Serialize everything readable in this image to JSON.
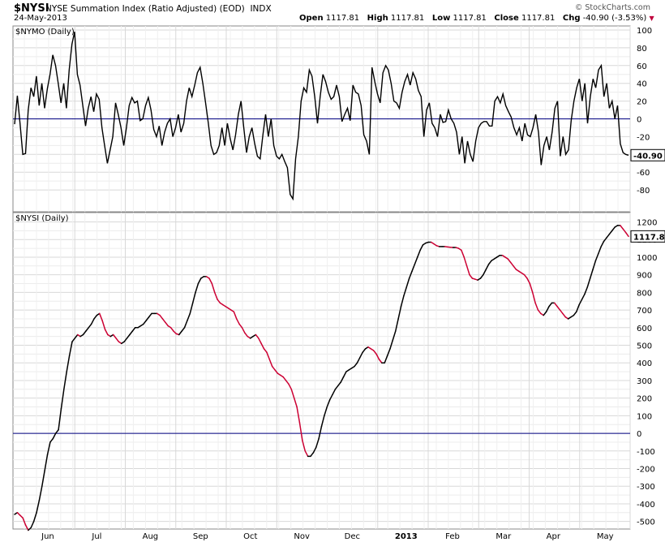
{
  "header": {
    "symbol": "$NYSI",
    "title": "NYSE Summation Index (Ratio Adjusted) (EOD)",
    "exchange": "INDX",
    "date": "24-May-2013",
    "open_label": "Open",
    "open": "1117.81",
    "high_label": "High",
    "high": "1117.81",
    "low_label": "Low",
    "low": "1117.81",
    "close_label": "Close",
    "close": "1117.81",
    "chg_label": "Chg",
    "chg": "-40.90 (-3.53%)",
    "credit": "© StockCharts.com"
  },
  "chart_data": [
    {
      "type": "line",
      "panel_label": "$NYMO (Daily)",
      "ylim": [
        -100,
        100
      ],
      "yticks": [
        100,
        80,
        60,
        40,
        20,
        0,
        -20,
        -40,
        -60,
        -80
      ],
      "last_value_label": "-40.90",
      "colors": {
        "line": "#000000",
        "zero_line": "#000080"
      },
      "grid": true,
      "values": [
        -6,
        26,
        -5,
        -40,
        -39,
        10,
        35,
        25,
        48,
        15,
        40,
        12,
        34,
        50,
        72,
        60,
        40,
        18,
        40,
        12,
        55,
        84,
        98,
        50,
        38,
        15,
        -8,
        12,
        25,
        8,
        28,
        22,
        -10,
        -30,
        -50,
        -35,
        -20,
        18,
        5,
        -10,
        -30,
        -10,
        15,
        24,
        18,
        20,
        -2,
        0,
        15,
        24,
        10,
        -12,
        -20,
        -8,
        -30,
        -15,
        -5,
        0,
        -20,
        -10,
        5,
        -15,
        -5,
        20,
        35,
        25,
        38,
        52,
        58,
        40,
        18,
        -5,
        -30,
        -40,
        -38,
        -30,
        -10,
        -30,
        -5,
        -22,
        -35,
        -18,
        5,
        20,
        -10,
        -38,
        -20,
        -10,
        -28,
        -42,
        -45,
        -18,
        5,
        -20,
        0,
        -30,
        -42,
        -45,
        -40,
        -48,
        -55,
        -85,
        -90,
        -45,
        -20,
        20,
        35,
        30,
        55,
        48,
        25,
        -5,
        25,
        50,
        42,
        30,
        22,
        25,
        38,
        25,
        -3,
        5,
        12,
        -2,
        38,
        30,
        28,
        15,
        -18,
        -25,
        -40,
        58,
        42,
        28,
        18,
        52,
        60,
        55,
        40,
        20,
        18,
        12,
        30,
        42,
        50,
        38,
        52,
        45,
        32,
        25,
        -20,
        10,
        18,
        -5,
        -10,
        -20,
        5,
        -4,
        -3,
        10,
        0,
        -5,
        -15,
        -40,
        -20,
        -50,
        -25,
        -40,
        -48,
        -25,
        -10,
        -5,
        -3,
        -3,
        -8,
        -8,
        20,
        25,
        18,
        28,
        15,
        8,
        2,
        -10,
        -18,
        -10,
        -25,
        -5,
        -18,
        -20,
        -10,
        5,
        -15,
        -52,
        -30,
        -20,
        -35,
        -15,
        12,
        20,
        -42,
        -20,
        -40,
        -35,
        -2,
        20,
        35,
        45,
        20,
        40,
        -5,
        25,
        45,
        35,
        55,
        60,
        25,
        40,
        12,
        20,
        0,
        15,
        -28,
        -38,
        -40,
        -40.9
      ]
    },
    {
      "type": "line",
      "panel_label": "$NYSI (Daily)",
      "ylim": [
        -520,
        1230
      ],
      "yticks": [
        1200,
        1100,
        1000,
        900,
        800,
        700,
        600,
        500,
        400,
        300,
        200,
        100,
        0,
        -100,
        -200,
        -300,
        -400,
        -500
      ],
      "last_value_label": "1117.81",
      "colors": {
        "up": "#000000",
        "down": "#cc0033",
        "zero_line": "#000080"
      },
      "grid": true,
      "x_tick_labels": [
        "Jun",
        "Jul",
        "Aug",
        "Sep",
        "Oct",
        "Nov",
        "Dec",
        "2013",
        "Feb",
        "Mar",
        "Apr",
        "May"
      ],
      "values": [
        -460,
        -450,
        -465,
        -480,
        -520,
        -550,
        -535,
        -500,
        -450,
        -380,
        -300,
        -210,
        -120,
        -50,
        -30,
        0,
        20,
        140,
        250,
        350,
        440,
        520,
        540,
        560,
        550,
        560,
        580,
        600,
        620,
        650,
        670,
        680,
        640,
        590,
        560,
        550,
        560,
        540,
        520,
        510,
        520,
        540,
        560,
        580,
        600,
        600,
        610,
        620,
        640,
        660,
        680,
        680,
        680,
        670,
        650,
        630,
        610,
        600,
        580,
        565,
        560,
        580,
        600,
        640,
        680,
        740,
        800,
        850,
        880,
        890,
        890,
        880,
        850,
        800,
        760,
        740,
        730,
        720,
        710,
        700,
        690,
        650,
        620,
        600,
        570,
        550,
        540,
        550,
        560,
        540,
        510,
        480,
        460,
        420,
        380,
        360,
        340,
        330,
        320,
        300,
        280,
        250,
        200,
        150,
        60,
        -40,
        -100,
        -130,
        -130,
        -110,
        -80,
        -30,
        40,
        100,
        150,
        190,
        220,
        250,
        270,
        290,
        320,
        350,
        360,
        370,
        380,
        400,
        430,
        460,
        480,
        490,
        480,
        470,
        450,
        420,
        400,
        400,
        440,
        480,
        530,
        580,
        650,
        720,
        780,
        830,
        880,
        920,
        960,
        1000,
        1040,
        1070,
        1080,
        1085,
        1085,
        1075,
        1065,
        1060,
        1060,
        1060,
        1058,
        1056,
        1055,
        1055,
        1050,
        1040,
        1000,
        950,
        900,
        880,
        875,
        870,
        880,
        900,
        930,
        960,
        980,
        990,
        1000,
        1010,
        1010,
        1000,
        990,
        970,
        950,
        930,
        920,
        910,
        900,
        880,
        850,
        800,
        740,
        700,
        680,
        670,
        690,
        720,
        740,
        740,
        720,
        700,
        680,
        660,
        650,
        660,
        670,
        690,
        730,
        760,
        790,
        830,
        880,
        930,
        980,
        1020,
        1060,
        1090,
        1110,
        1130,
        1150,
        1170,
        1180,
        1180,
        1160,
        1140,
        1117.81
      ]
    }
  ]
}
